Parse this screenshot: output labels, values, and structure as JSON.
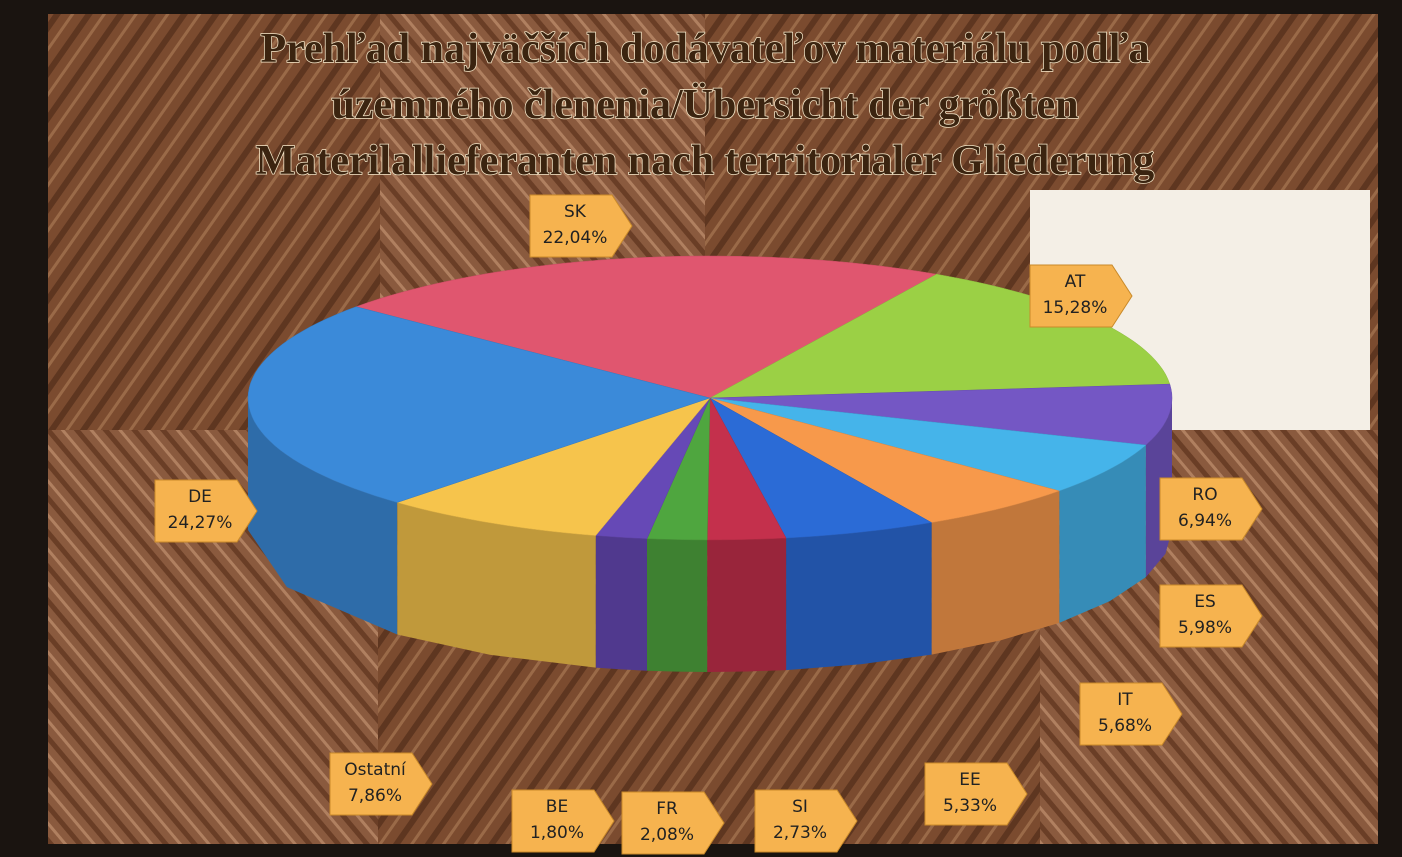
{
  "chart_data": {
    "type": "pie",
    "title": [
      "Prehľad najväčších dodávateľov materiálu podľa",
      "územného členenia/Übersicht der größten",
      "Materilallieferanten nach territorialer Gliederung"
    ],
    "categories": [
      "SK",
      "AT",
      "RO",
      "ES",
      "IT",
      "EE",
      "SI",
      "FR",
      "BE",
      "Ostatní",
      "DE"
    ],
    "values": [
      22.04,
      15.28,
      6.94,
      5.98,
      5.68,
      5.33,
      2.73,
      2.08,
      1.8,
      7.86,
      24.27
    ],
    "value_labels": [
      "22,04%",
      "15,28%",
      "6,94%",
      "5,98%",
      "5,68%",
      "5,33%",
      "2,73%",
      "2,08%",
      "1,80%",
      "7,86%",
      "24,27%"
    ],
    "colors": [
      "#e0566f",
      "#9bd045",
      "#7457c4",
      "#45b4ea",
      "#f7994b",
      "#2b6bd6",
      "#c4304c",
      "#4fa63f",
      "#6649b6",
      "#f6c44c",
      "#3b8ad9"
    ]
  }
}
